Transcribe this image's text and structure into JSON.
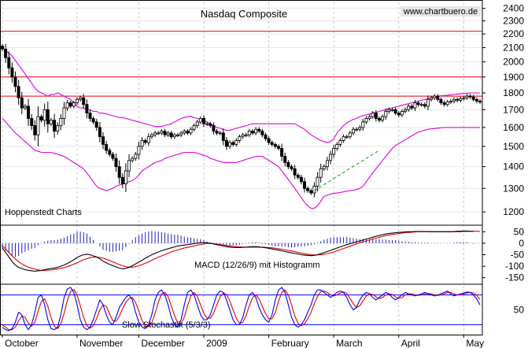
{
  "colors": {
    "resistance": "#e60000",
    "bollinger": "#dd00dd",
    "trendline": "#00aa00",
    "macd": "#000000",
    "signal": "#e60000",
    "histogram": "#1e1ec8",
    "stoch_k": "#0000ff",
    "stoch_d": "#e60000",
    "stoch_bounds": "#0000ff",
    "grid": "#c8c8c8"
  },
  "chart_data": [
    {
      "type": "candlestick",
      "title": "Nasdaq Composite",
      "watermark": "www.chartbuero.de",
      "source_label": "Hoppenstedt Charts",
      "y_ticks": [
        1200,
        1300,
        1400,
        1500,
        1600,
        1700,
        1800,
        1900,
        2000,
        2100,
        2200,
        2300,
        2400
      ],
      "ylim": [
        1150,
        2450
      ],
      "scale": "log",
      "resistance_lines": [
        1780,
        1900,
        2220
      ],
      "x_labels": [
        "October",
        "November",
        "December",
        "2009",
        "February",
        "March",
        "April",
        "May"
      ],
      "x_label_index": [
        0,
        23,
        42,
        62,
        82,
        102,
        122,
        142
      ],
      "n_sessions": 148,
      "close": [
        2090,
        2030,
        1960,
        1900,
        1840,
        1770,
        1710,
        1720,
        1650,
        1610,
        1560,
        1660,
        1640,
        1700,
        1620,
        1640,
        1580,
        1610,
        1650,
        1710,
        1740,
        1720,
        1740,
        1760,
        1770,
        1730,
        1680,
        1650,
        1630,
        1600,
        1550,
        1510,
        1480,
        1460,
        1440,
        1400,
        1350,
        1320,
        1380,
        1430,
        1440,
        1460,
        1500,
        1530,
        1520,
        1550,
        1560,
        1570,
        1570,
        1580,
        1560,
        1570,
        1550,
        1560,
        1560,
        1570,
        1580,
        1570,
        1590,
        1610,
        1630,
        1650,
        1620,
        1620,
        1610,
        1580,
        1570,
        1570,
        1530,
        1500,
        1520,
        1510,
        1530,
        1550,
        1560,
        1560,
        1580,
        1570,
        1590,
        1580,
        1560,
        1540,
        1520,
        1510,
        1500,
        1490,
        1450,
        1420,
        1400,
        1390,
        1360,
        1350,
        1330,
        1300,
        1290,
        1280,
        1310,
        1350,
        1390,
        1400,
        1430,
        1460,
        1490,
        1510,
        1530,
        1550,
        1550,
        1570,
        1590,
        1590,
        1600,
        1630,
        1650,
        1660,
        1680,
        1650,
        1640,
        1660,
        1690,
        1700,
        1700,
        1680,
        1670,
        1690,
        1700,
        1720,
        1710,
        1740,
        1730,
        1730,
        1720,
        1760,
        1770,
        1780,
        1760,
        1740,
        1730,
        1745,
        1750,
        1760,
        1755,
        1765,
        1770,
        1780,
        1775,
        1760,
        1750,
        1745
      ],
      "bb_upper": [
        2100,
        2080,
        2060,
        2040,
        2010,
        1980,
        1950,
        1920,
        1890,
        1860,
        1830,
        1810,
        1800,
        1790,
        1780,
        1790,
        1790,
        1800,
        1790,
        1780,
        1770,
        1760,
        1740,
        1720,
        1710,
        1710,
        1700,
        1700,
        1690,
        1690,
        1680,
        1680,
        1675,
        1670,
        1665,
        1660,
        1655,
        1655,
        1650,
        1645,
        1640,
        1635,
        1630,
        1625,
        1620,
        1615,
        1610,
        1605,
        1605,
        1605,
        1610,
        1615,
        1620,
        1630,
        1640,
        1650,
        1655,
        1660,
        1660,
        1655,
        1650,
        1645,
        1640,
        1630,
        1620,
        1610,
        1600,
        1595,
        1590,
        1585,
        1585,
        1590,
        1595,
        1600,
        1605,
        1610,
        1615,
        1620,
        1620,
        1620,
        1620,
        1620,
        1620,
        1620,
        1620,
        1620,
        1620,
        1620,
        1620,
        1620,
        1620,
        1610,
        1600,
        1590,
        1575,
        1560,
        1550,
        1540,
        1530,
        1525,
        1520,
        1525,
        1540,
        1570,
        1590,
        1610,
        1625,
        1635,
        1645,
        1650,
        1660,
        1665,
        1670,
        1675,
        1680,
        1685,
        1690,
        1695,
        1700,
        1705,
        1710,
        1715,
        1720,
        1725,
        1730,
        1735,
        1740,
        1745,
        1750,
        1755,
        1760,
        1765,
        1770,
        1775,
        1780,
        1782,
        1784,
        1786,
        1788,
        1790,
        1792,
        1794,
        1796,
        1798,
        1800,
        1800,
        1800,
        1800
      ],
      "bb_lower": [
        1650,
        1630,
        1610,
        1590,
        1570,
        1555,
        1540,
        1525,
        1510,
        1495,
        1480,
        1475,
        1470,
        1470,
        1470,
        1470,
        1465,
        1460,
        1455,
        1450,
        1440,
        1430,
        1420,
        1410,
        1400,
        1390,
        1370,
        1350,
        1330,
        1310,
        1300,
        1295,
        1290,
        1295,
        1300,
        1310,
        1315,
        1320,
        1325,
        1330,
        1335,
        1345,
        1360,
        1380,
        1390,
        1400,
        1410,
        1420,
        1425,
        1430,
        1440,
        1445,
        1450,
        1455,
        1460,
        1465,
        1470,
        1470,
        1470,
        1470,
        1465,
        1460,
        1455,
        1450,
        1440,
        1435,
        1430,
        1425,
        1420,
        1420,
        1420,
        1420,
        1420,
        1425,
        1430,
        1435,
        1440,
        1445,
        1450,
        1450,
        1450,
        1440,
        1430,
        1420,
        1410,
        1400,
        1380,
        1360,
        1340,
        1320,
        1300,
        1280,
        1260,
        1240,
        1225,
        1215,
        1215,
        1225,
        1245,
        1265,
        1270,
        1275,
        1278,
        1280,
        1282,
        1285,
        1288,
        1290,
        1292,
        1295,
        1300,
        1310,
        1330,
        1350,
        1370,
        1390,
        1410,
        1430,
        1450,
        1470,
        1490,
        1505,
        1515,
        1525,
        1535,
        1545,
        1555,
        1565,
        1575,
        1580,
        1585,
        1590,
        1592,
        1594,
        1596,
        1598,
        1600,
        1600,
        1600,
        1600,
        1600,
        1600,
        1600,
        1600,
        1600,
        1600,
        1600,
        1600
      ],
      "bb_middle": [
        1880,
        1860,
        1840,
        1820,
        1800,
        1780,
        1760,
        1740,
        1720,
        1700,
        1680,
        1660,
        1650,
        1650,
        1650,
        1650,
        1650,
        1650,
        1650,
        1650,
        1640,
        1630,
        1620,
        1610,
        1600,
        1590,
        1580,
        1570,
        1560,
        1550,
        1540,
        1530,
        1520,
        1515,
        1510,
        1505,
        1500,
        1500,
        1500,
        1500,
        1500,
        1505,
        1510,
        1515,
        1520,
        1525,
        1530,
        1535,
        1540,
        1545,
        1550,
        1555,
        1560,
        1565,
        1570,
        1575,
        1580,
        1580,
        1580,
        1580,
        1575,
        1570,
        1565,
        1560,
        1555,
        1550,
        1545,
        1540,
        1535,
        1530,
        1530,
        1530,
        1530,
        1530,
        1530,
        1530,
        1530,
        1530,
        1530,
        1530,
        1530,
        1525,
        1520,
        1515,
        1510,
        1505,
        1500,
        1490,
        1480,
        1470,
        1460,
        1450,
        1440,
        1430,
        1420,
        1410,
        1400,
        1395,
        1395,
        1400,
        1405,
        1410,
        1415,
        1420,
        1430,
        1440,
        1450,
        1460,
        1470,
        1480,
        1490,
        1500,
        1510,
        1520,
        1530,
        1540,
        1550,
        1560,
        1570,
        1580,
        1590,
        1600,
        1610,
        1620,
        1630,
        1640,
        1650,
        1655,
        1660,
        1665,
        1670,
        1675,
        1680,
        1685,
        1690,
        1692,
        1694,
        1696,
        1698,
        1700,
        1700,
        1700,
        1700,
        1700,
        1700,
        1700,
        1700,
        1700
      ],
      "trendline": [
        {
          "i": 96,
          "v": 1290
        },
        {
          "i": 116,
          "v": 1480
        }
      ]
    },
    {
      "type": "line",
      "title": "MACD (12/26/9) mit Histogramm",
      "y_ticks": [
        50,
        0,
        -50,
        -100,
        -150
      ],
      "ylim": [
        -175,
        75
      ],
      "macd": [
        -20,
        -40,
        -60,
        -80,
        -95,
        -105,
        -110,
        -115,
        -118,
        -120,
        -122,
        -120,
        -118,
        -115,
        -112,
        -110,
        -108,
        -105,
        -100,
        -95,
        -88,
        -80,
        -72,
        -62,
        -55,
        -50,
        -48,
        -50,
        -55,
        -60,
        -68,
        -78,
        -85,
        -92,
        -98,
        -103,
        -108,
        -112,
        -110,
        -105,
        -98,
        -90,
        -82,
        -74,
        -65,
        -58,
        -50,
        -44,
        -38,
        -33,
        -28,
        -24,
        -20,
        -16,
        -12,
        -10,
        -8,
        -6,
        -4,
        -2,
        0,
        2,
        3,
        2,
        0,
        -3,
        -6,
        -9,
        -12,
        -15,
        -17,
        -18,
        -19,
        -19,
        -18,
        -17,
        -16,
        -15,
        -15,
        -16,
        -18,
        -20,
        -22,
        -25,
        -28,
        -30,
        -33,
        -36,
        -39,
        -42,
        -45,
        -47,
        -50,
        -52,
        -53,
        -54,
        -53,
        -50,
        -46,
        -41,
        -36,
        -31,
        -26,
        -21,
        -16,
        -11,
        -6,
        -2,
        2,
        6,
        10,
        14,
        18,
        22,
        26,
        30,
        34,
        37,
        40,
        42,
        44,
        46,
        47,
        48,
        49,
        50,
        50,
        51,
        51,
        51,
        51,
        51,
        50,
        50,
        50,
        50,
        50,
        50,
        50,
        51,
        52,
        52,
        53,
        53,
        52,
        51
      ],
      "signal": [
        -10,
        -25,
        -40,
        -55,
        -68,
        -80,
        -90,
        -98,
        -104,
        -109,
        -113,
        -116,
        -118,
        -118,
        -117,
        -116,
        -114,
        -112,
        -109,
        -106,
        -102,
        -97,
        -91,
        -85,
        -78,
        -72,
        -67,
        -63,
        -61,
        -60,
        -62,
        -65,
        -70,
        -75,
        -81,
        -87,
        -93,
        -98,
        -102,
        -104,
        -104,
        -102,
        -98,
        -93,
        -87,
        -81,
        -74,
        -67,
        -61,
        -55,
        -49,
        -43,
        -38,
        -33,
        -29,
        -25,
        -21,
        -18,
        -15,
        -12,
        -9,
        -6,
        -3,
        -1,
        -1,
        -2,
        -4,
        -6,
        -8,
        -10,
        -12,
        -14,
        -15,
        -16,
        -17,
        -17,
        -17,
        -17,
        -17,
        -17,
        -17,
        -18,
        -19,
        -20,
        -22,
        -24,
        -26,
        -29,
        -31,
        -34,
        -37,
        -40,
        -43,
        -46,
        -48,
        -50,
        -51,
        -51,
        -50,
        -48,
        -45,
        -42,
        -38,
        -33,
        -28,
        -23,
        -18,
        -13,
        -8,
        -3,
        2,
        6,
        10,
        14,
        18,
        22,
        26,
        30,
        33,
        36,
        38,
        40,
        42,
        44,
        46,
        47,
        48,
        49,
        50,
        50,
        50,
        50,
        50,
        50,
        50,
        50,
        50,
        50,
        50,
        50,
        50,
        50,
        51,
        51,
        52,
        52,
        52,
        51
      ]
    },
    {
      "type": "line",
      "title": "Slow Stochastik (5/3/3)",
      "y_ticks": [
        50
      ],
      "ylim": [
        0,
        100
      ],
      "bounds": [
        80,
        20
      ],
      "stoch_k": [
        15,
        10,
        8,
        12,
        25,
        45,
        40,
        20,
        10,
        20,
        45,
        75,
        80,
        60,
        30,
        12,
        10,
        15,
        40,
        75,
        92,
        95,
        85,
        60,
        30,
        15,
        10,
        15,
        30,
        50,
        70,
        60,
        40,
        25,
        20,
        35,
        55,
        65,
        75,
        80,
        70,
        45,
        25,
        15,
        12,
        20,
        40,
        70,
        85,
        90,
        80,
        60,
        35,
        20,
        15,
        30,
        60,
        85,
        90,
        80,
        60,
        40,
        30,
        30,
        40,
        60,
        80,
        88,
        85,
        70,
        50,
        30,
        20,
        20,
        35,
        60,
        80,
        85,
        75,
        55,
        40,
        30,
        25,
        40,
        70,
        90,
        95,
        85,
        60,
        35,
        20,
        15,
        20,
        30,
        45,
        60,
        80,
        90,
        90,
        85,
        80,
        75,
        80,
        85,
        88,
        85,
        75,
        60,
        50,
        55,
        70,
        80,
        85,
        82,
        75,
        70,
        75,
        80,
        85,
        82,
        75,
        70,
        75,
        80,
        85,
        82,
        80,
        78,
        80,
        82,
        85,
        82,
        80,
        78,
        80,
        82,
        85,
        88,
        82,
        78,
        80,
        82,
        84,
        86,
        85,
        80,
        72,
        60
      ],
      "stoch_d": [
        20,
        15,
        10,
        10,
        15,
        28,
        37,
        35,
        23,
        17,
        25,
        47,
        67,
        72,
        57,
        34,
        17,
        12,
        22,
        43,
        69,
        87,
        91,
        80,
        58,
        35,
        18,
        13,
        18,
        32,
        50,
        60,
        57,
        42,
        28,
        27,
        37,
        52,
        65,
        73,
        75,
        65,
        48,
        28,
        17,
        16,
        24,
        43,
        65,
        82,
        85,
        77,
        58,
        38,
        23,
        22,
        35,
        58,
        78,
        85,
        77,
        60,
        43,
        33,
        33,
        43,
        60,
        76,
        84,
        81,
        68,
        50,
        33,
        23,
        25,
        38,
        58,
        75,
        80,
        72,
        57,
        42,
        32,
        32,
        45,
        67,
        85,
        90,
        80,
        60,
        38,
        23,
        18,
        22,
        32,
        45,
        62,
        77,
        87,
        88,
        85,
        80,
        78,
        80,
        84,
        86,
        83,
        73,
        62,
        55,
        58,
        68,
        78,
        82,
        81,
        76,
        73,
        75,
        80,
        82,
        81,
        76,
        73,
        75,
        80,
        82,
        82,
        80,
        79,
        80,
        82,
        83,
        82,
        80,
        79,
        80,
        82,
        85,
        85,
        82,
        80,
        80,
        82,
        84,
        85,
        84,
        79,
        71
      ]
    }
  ]
}
